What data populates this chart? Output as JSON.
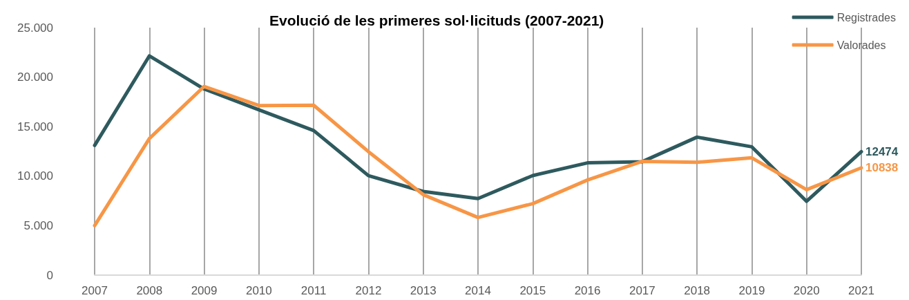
{
  "chart_data": {
    "type": "line",
    "title": "Evolució de les primeres sol·licituds (2007-2021)",
    "categories": [
      "2007",
      "2008",
      "2009",
      "2010",
      "2011",
      "2012",
      "2013",
      "2014",
      "2015",
      "2016",
      "2017",
      "2018",
      "2019",
      "2020",
      "2021"
    ],
    "series": [
      {
        "name": "Registrades",
        "color": "#2e5a5e",
        "values": [
          13100,
          22150,
          18800,
          16700,
          14600,
          10050,
          8450,
          7730,
          10060,
          11340,
          11460,
          13940,
          12960,
          7460,
          12474
        ],
        "value_labels": [
          null,
          null,
          null,
          null,
          null,
          null,
          null,
          null,
          null,
          null,
          null,
          null,
          null,
          null,
          "12474"
        ]
      },
      {
        "name": "Valorades",
        "color": "#f79646",
        "values": [
          5000,
          13800,
          19060,
          17130,
          17160,
          12470,
          8130,
          5820,
          7220,
          9610,
          11490,
          11400,
          11850,
          8630,
          10838
        ],
        "value_labels": [
          null,
          null,
          null,
          null,
          null,
          null,
          null,
          null,
          null,
          null,
          null,
          null,
          null,
          null,
          "10838"
        ]
      }
    ],
    "ylim": [
      0,
      25000
    ],
    "yticks": [
      0,
      {
        "value": 5000,
        "label": "5.000"
      },
      {
        "value": 10000,
        "label": "10.000"
      },
      {
        "value": 15000,
        "label": "15.000"
      },
      {
        "value": 20000,
        "label": "20.000"
      },
      {
        "value": 25000,
        "label": "25.000"
      }
    ],
    "grid": "x",
    "legend": "top right",
    "marker": "none",
    "line_style": "solid"
  }
}
